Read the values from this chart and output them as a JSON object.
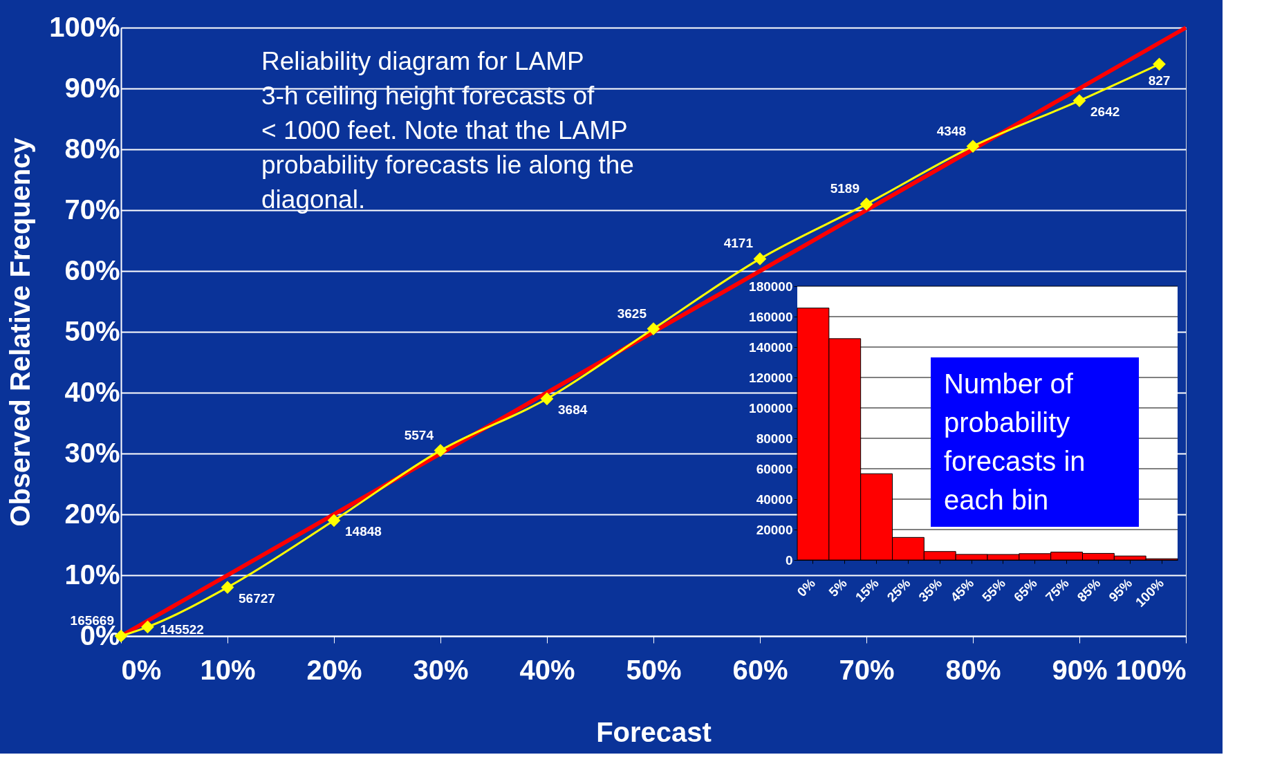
{
  "chart_data": [
    {
      "type": "line",
      "xlabel": "Forecast",
      "ylabel": "Observed Relative Frequency",
      "xlim": [
        0,
        100
      ],
      "ylim": [
        0,
        100
      ],
      "xticks": [
        {
          "value": 0,
          "label": "0%"
        },
        {
          "value": 10,
          "label": "10%"
        },
        {
          "value": 20,
          "label": "20%"
        },
        {
          "value": 30,
          "label": "30%"
        },
        {
          "value": 40,
          "label": "40%"
        },
        {
          "value": 50,
          "label": "50%"
        },
        {
          "value": 60,
          "label": "60%"
        },
        {
          "value": 70,
          "label": "70%"
        },
        {
          "value": 80,
          "label": "80%"
        },
        {
          "value": 90,
          "label": "90%"
        },
        {
          "value": 100,
          "label": "100%"
        }
      ],
      "yticks": [
        {
          "value": 0,
          "label": "0%"
        },
        {
          "value": 10,
          "label": "10%"
        },
        {
          "value": 20,
          "label": "20%"
        },
        {
          "value": 30,
          "label": "30%"
        },
        {
          "value": 40,
          "label": "40%"
        },
        {
          "value": 50,
          "label": "50%"
        },
        {
          "value": 60,
          "label": "60%"
        },
        {
          "value": 70,
          "label": "70%"
        },
        {
          "value": 80,
          "label": "80%"
        },
        {
          "value": 90,
          "label": "90%"
        },
        {
          "value": 100,
          "label": "100%"
        }
      ],
      "grid": "y",
      "annotations": [
        "Reliability diagram for LAMP\n3-h ceiling height forecasts of\n< 1000 feet.  Note that the LAMP\nprobability forecasts lie along the\ndiagonal.",
        {
          "text": "165669",
          "x": 0,
          "y": 0
        },
        {
          "text": "145522",
          "x": 2.5,
          "y": 1.5
        },
        {
          "text": "56727",
          "x": 10,
          "y": 8
        },
        {
          "text": "14848",
          "x": 20,
          "y": 19
        },
        {
          "text": "5574",
          "x": 30,
          "y": 30.5
        },
        {
          "text": "3684",
          "x": 40,
          "y": 39
        },
        {
          "text": "3625",
          "x": 50,
          "y": 50.5
        },
        {
          "text": "4171",
          "x": 60,
          "y": 62
        },
        {
          "text": "5189",
          "x": 70,
          "y": 71
        },
        {
          "text": "4348",
          "x": 80,
          "y": 80.5
        },
        {
          "text": "2642",
          "x": 90,
          "y": 88
        },
        {
          "text": "827",
          "x": 97.5,
          "y": 94
        }
      ],
      "series": [
        {
          "color": "#ff0000",
          "x": [
            0,
            100
          ],
          "values": [
            0,
            100
          ],
          "marker": "none"
        },
        {
          "color": "#ffff00",
          "x": [
            0,
            2.5,
            10,
            20,
            30,
            40,
            50,
            60,
            70,
            80,
            90,
            97.5
          ],
          "values": [
            0,
            1.5,
            8,
            19,
            30.5,
            39,
            50.5,
            62,
            71,
            80.5,
            88,
            94
          ],
          "marker": "diamond"
        }
      ]
    },
    {
      "type": "bar",
      "categories": [
        "0%",
        "5%",
        "15%",
        "25%",
        "35%",
        "45%",
        "55%",
        "65%",
        "75%",
        "85%",
        "95%",
        "100%"
      ],
      "values": [
        165669,
        145522,
        56727,
        14848,
        5574,
        3684,
        3625,
        4171,
        5189,
        4348,
        2642,
        827
      ],
      "color": "#ff0000",
      "ylim": [
        0,
        180000
      ],
      "yticks": [
        0,
        20000,
        40000,
        60000,
        80000,
        100000,
        120000,
        140000,
        160000,
        180000
      ],
      "grid": "y",
      "annotations": [
        "Number of\nprobability\nforecasts in\neach bin"
      ]
    }
  ]
}
